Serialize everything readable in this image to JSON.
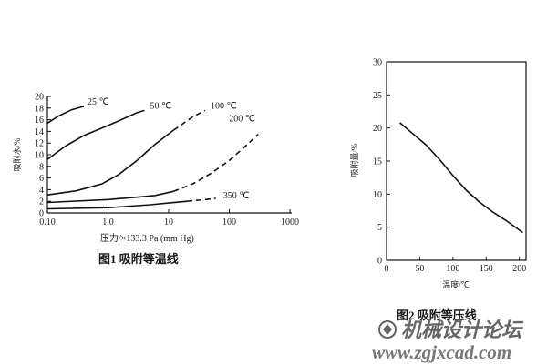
{
  "chart_data": [
    {
      "type": "line",
      "x_scale": "log",
      "xlim": [
        0.1,
        1000
      ],
      "ylim": [
        0,
        20
      ],
      "x_ticks": [
        "0.10",
        "1.0",
        "10",
        "100",
        "1000"
      ],
      "y_ticks": [
        "0",
        "2",
        "4",
        "6",
        "8",
        "10",
        "12",
        "14",
        "16",
        "18",
        "20"
      ],
      "xlabel": "压力/×133.3 Pa (mm Hg)",
      "ylabel": "吸附水/%",
      "caption": "图1  吸附等温线",
      "series": [
        {
          "name": "25 ℃",
          "x": [
            0.1,
            0.15,
            0.25,
            0.4
          ],
          "y": [
            15.4,
            16.6,
            17.7,
            18.3
          ]
        },
        {
          "name": "50 ℃",
          "x": [
            0.1,
            0.2,
            0.4,
            0.8,
            1.5,
            3,
            4
          ],
          "y": [
            9.2,
            11.5,
            13.3,
            14.6,
            15.8,
            17.2,
            17.6
          ]
        },
        {
          "name": "100 ℃",
          "x": [
            0.1,
            0.3,
            0.8,
            1.5,
            3,
            6,
            12,
            25,
            40
          ],
          "y": [
            3.1,
            3.8,
            5,
            6.6,
            9,
            11.8,
            14.2,
            16.5,
            17.6
          ]
        },
        {
          "name": "200 ℃",
          "x": [
            0.1,
            1,
            3,
            6,
            12,
            25,
            50,
            100,
            200,
            300
          ],
          "y": [
            1.8,
            2.3,
            2.7,
            3.0,
            3.7,
            5.0,
            6.8,
            9.0,
            11.8,
            13.5
          ]
        },
        {
          "name": "350 ℃",
          "x": [
            0.1,
            1,
            5,
            10,
            20,
            40,
            60
          ],
          "y": [
            0.7,
            0.9,
            1.4,
            1.7,
            2.0,
            2.3,
            2.5
          ]
        }
      ]
    },
    {
      "type": "line",
      "xlim": [
        0,
        210
      ],
      "ylim": [
        0,
        30
      ],
      "x_ticks": [
        "0",
        "50",
        "100",
        "150",
        "200"
      ],
      "y_ticks": [
        "0",
        "5",
        "10",
        "15",
        "20",
        "25",
        "30"
      ],
      "xlabel": "温度/℃",
      "ylabel": "吸附量/%",
      "caption": "图2  吸附等压线",
      "series": [
        {
          "name": "",
          "x": [
            20,
            40,
            60,
            80,
            100,
            120,
            140,
            160,
            180,
            205
          ],
          "y": [
            20.8,
            19.1,
            17.4,
            15.2,
            12.8,
            10.6,
            8.8,
            7.3,
            6.0,
            4.2
          ]
        }
      ]
    }
  ],
  "watermark": {
    "site_name": "机械设计论坛",
    "url": "www.zgjxcad.com",
    "logo_icon": "forum-logo-icon"
  }
}
